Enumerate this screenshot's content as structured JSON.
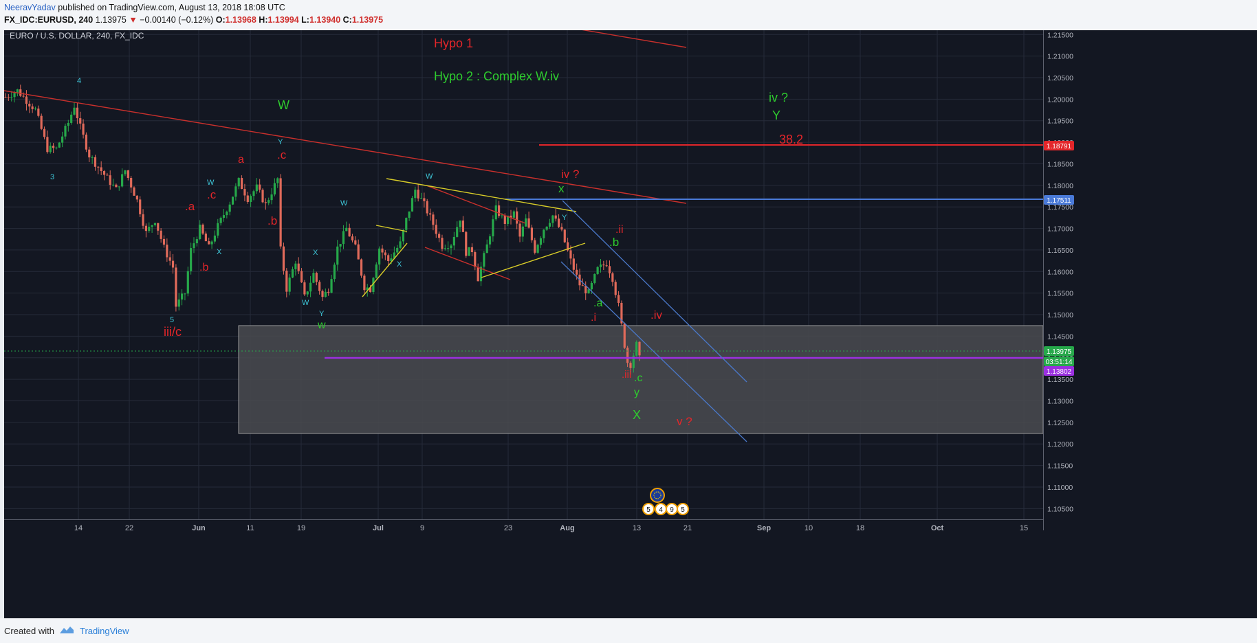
{
  "header": {
    "author": "NeeravYadav",
    "published": " published on TradingView.com, August 13, 2018 18:08 UTC",
    "symbol": "FX_IDC:EURUSD, 240",
    "last": "1.13975",
    "change": "−0.00140 (−0.12%)",
    "o_label": "O:",
    "o": "1.13968",
    "h_label": "H:",
    "h": "1.13994",
    "l_label": "L:",
    "l": "1.13940",
    "c_label": "C:",
    "c": "1.13975"
  },
  "footer": {
    "created_with": "Created with",
    "brand": "TradingView"
  },
  "colors": {
    "background": "#131722",
    "grid": "#262b3a",
    "up": "#26a84a",
    "down": "#e06a5a",
    "red_label": "#e3262a",
    "green_label": "#2ecc2e",
    "cyan_label": "#3ec6d8",
    "channel": "#4a78c8",
    "triangle": "#d8cc28",
    "support": "#9b30e0",
    "level_blue": "#4a7ad8"
  },
  "chart_data": {
    "type": "candlestick",
    "title": "EURO / U.S. DOLLAR, 240, FX_IDC",
    "y_range": [
      1.1025,
      1.216
    ],
    "x_tick_labels": [
      "14",
      "22",
      "Jun",
      "11",
      "19",
      "Jul",
      "9",
      "23",
      "Aug",
      "13",
      "21",
      "Sep",
      "10",
      "18",
      "Oct",
      "15"
    ],
    "y_tick_labels": [
      "1.21500",
      "1.21000",
      "1.20500",
      "1.20000",
      "1.19500",
      "1.19000",
      "1.18500",
      "1.18000",
      "1.17500",
      "1.17000",
      "1.16500",
      "1.16000",
      "1.15500",
      "1.15000",
      "1.14500",
      "1.14000",
      "1.13500",
      "1.13000",
      "1.12500",
      "1.12000",
      "1.11500",
      "1.11000",
      "1.10500"
    ],
    "price_tags": [
      {
        "value": 1.18791,
        "label": "1.18791",
        "color": "#e3262a"
      },
      {
        "value": 1.17511,
        "label": "1.17511",
        "color": "#4a7ad8"
      },
      {
        "value": 1.13975,
        "label": "1.13975",
        "color": "#26a84a"
      },
      {
        "value": 1.13751,
        "label": "03:51:14",
        "color": "#26a84a"
      },
      {
        "value": 1.13802,
        "label": "1.13802",
        "color": "#9b30e0"
      }
    ],
    "path": [
      [
        0,
        1.2005
      ],
      [
        4,
        1.202
      ],
      [
        10,
        1.1975
      ],
      [
        14,
        1.1885
      ],
      [
        17,
        1.1885
      ],
      [
        21,
        1.1945
      ],
      [
        23,
        1.1985
      ],
      [
        25,
        1.1935
      ],
      [
        28,
        1.187
      ],
      [
        33,
        1.1825
      ],
      [
        37,
        1.179
      ],
      [
        40,
        1.1835
      ],
      [
        44,
        1.1765
      ],
      [
        47,
        1.169
      ],
      [
        50,
        1.172
      ],
      [
        53,
        1.1655
      ],
      [
        56,
        1.161
      ],
      [
        57,
        1.152
      ],
      [
        60,
        1.155
      ],
      [
        62,
        1.165
      ],
      [
        65,
        1.17
      ],
      [
        68,
        1.1655
      ],
      [
        71,
        1.1705
      ],
      [
        75,
        1.176
      ],
      [
        78,
        1.181
      ],
      [
        81,
        1.177
      ],
      [
        84,
        1.1795
      ],
      [
        87,
        1.1755
      ],
      [
        91,
        1.1815
      ],
      [
        92,
        1.165
      ],
      [
        94,
        1.156
      ],
      [
        97,
        1.1625
      ],
      [
        100,
        1.154
      ],
      [
        103,
        1.1595
      ],
      [
        106,
        1.154
      ],
      [
        108,
        1.156
      ],
      [
        111,
        1.1655
      ],
      [
        114,
        1.17
      ],
      [
        117,
        1.1655
      ],
      [
        120,
        1.1565
      ],
      [
        122,
        1.156
      ],
      [
        125,
        1.1655
      ],
      [
        128,
        1.1625
      ],
      [
        132,
        1.1665
      ],
      [
        134,
        1.172
      ],
      [
        137,
        1.179
      ],
      [
        140,
        1.1755
      ],
      [
        143,
        1.171
      ],
      [
        146,
        1.166
      ],
      [
        149,
        1.1665
      ],
      [
        152,
        1.1725
      ],
      [
        154,
        1.1645
      ],
      [
        156,
        1.165
      ],
      [
        158,
        1.1585
      ],
      [
        161,
        1.166
      ],
      [
        164,
        1.1745
      ],
      [
        167,
        1.1715
      ],
      [
        170,
        1.1735
      ],
      [
        172,
        1.168
      ],
      [
        174,
        1.172
      ],
      [
        177,
        1.165
      ],
      [
        180,
        1.17
      ],
      [
        183,
        1.173
      ],
      [
        186,
        1.169
      ],
      [
        189,
        1.1625
      ],
      [
        192,
        1.157
      ],
      [
        195,
        1.155
      ],
      [
        198,
        1.1605
      ],
      [
        201,
        1.162
      ],
      [
        203,
        1.1585
      ],
      [
        205,
        1.152
      ],
      [
        207,
        1.143
      ],
      [
        208,
        1.139
      ],
      [
        209,
        1.1385
      ],
      [
        211,
        1.143
      ],
      [
        212,
        1.1397
      ]
    ],
    "path_x_range": [
      0,
      212
    ],
    "annotations_red": [
      "Hypo 1",
      "iv ?",
      "38.2",
      "iii/c",
      ".c",
      ".a",
      ".b",
      ".c",
      ".b",
      "a",
      ".ii",
      ".i",
      ".iv",
      ".iii",
      "v ?"
    ],
    "annotations_green": [
      "Hypo 2 : Complex W.iv",
      "W",
      "x",
      ".b",
      ".a",
      ".c",
      "y",
      "X",
      "iv ?",
      "Y",
      "w"
    ],
    "annotations_cyan": [
      "4",
      "3",
      "5",
      "Y",
      "W",
      "X",
      "W",
      "X",
      "W",
      "Y",
      "W",
      "X",
      "Y"
    ],
    "event_badges": [
      "5",
      "4",
      "9",
      "5"
    ]
  }
}
